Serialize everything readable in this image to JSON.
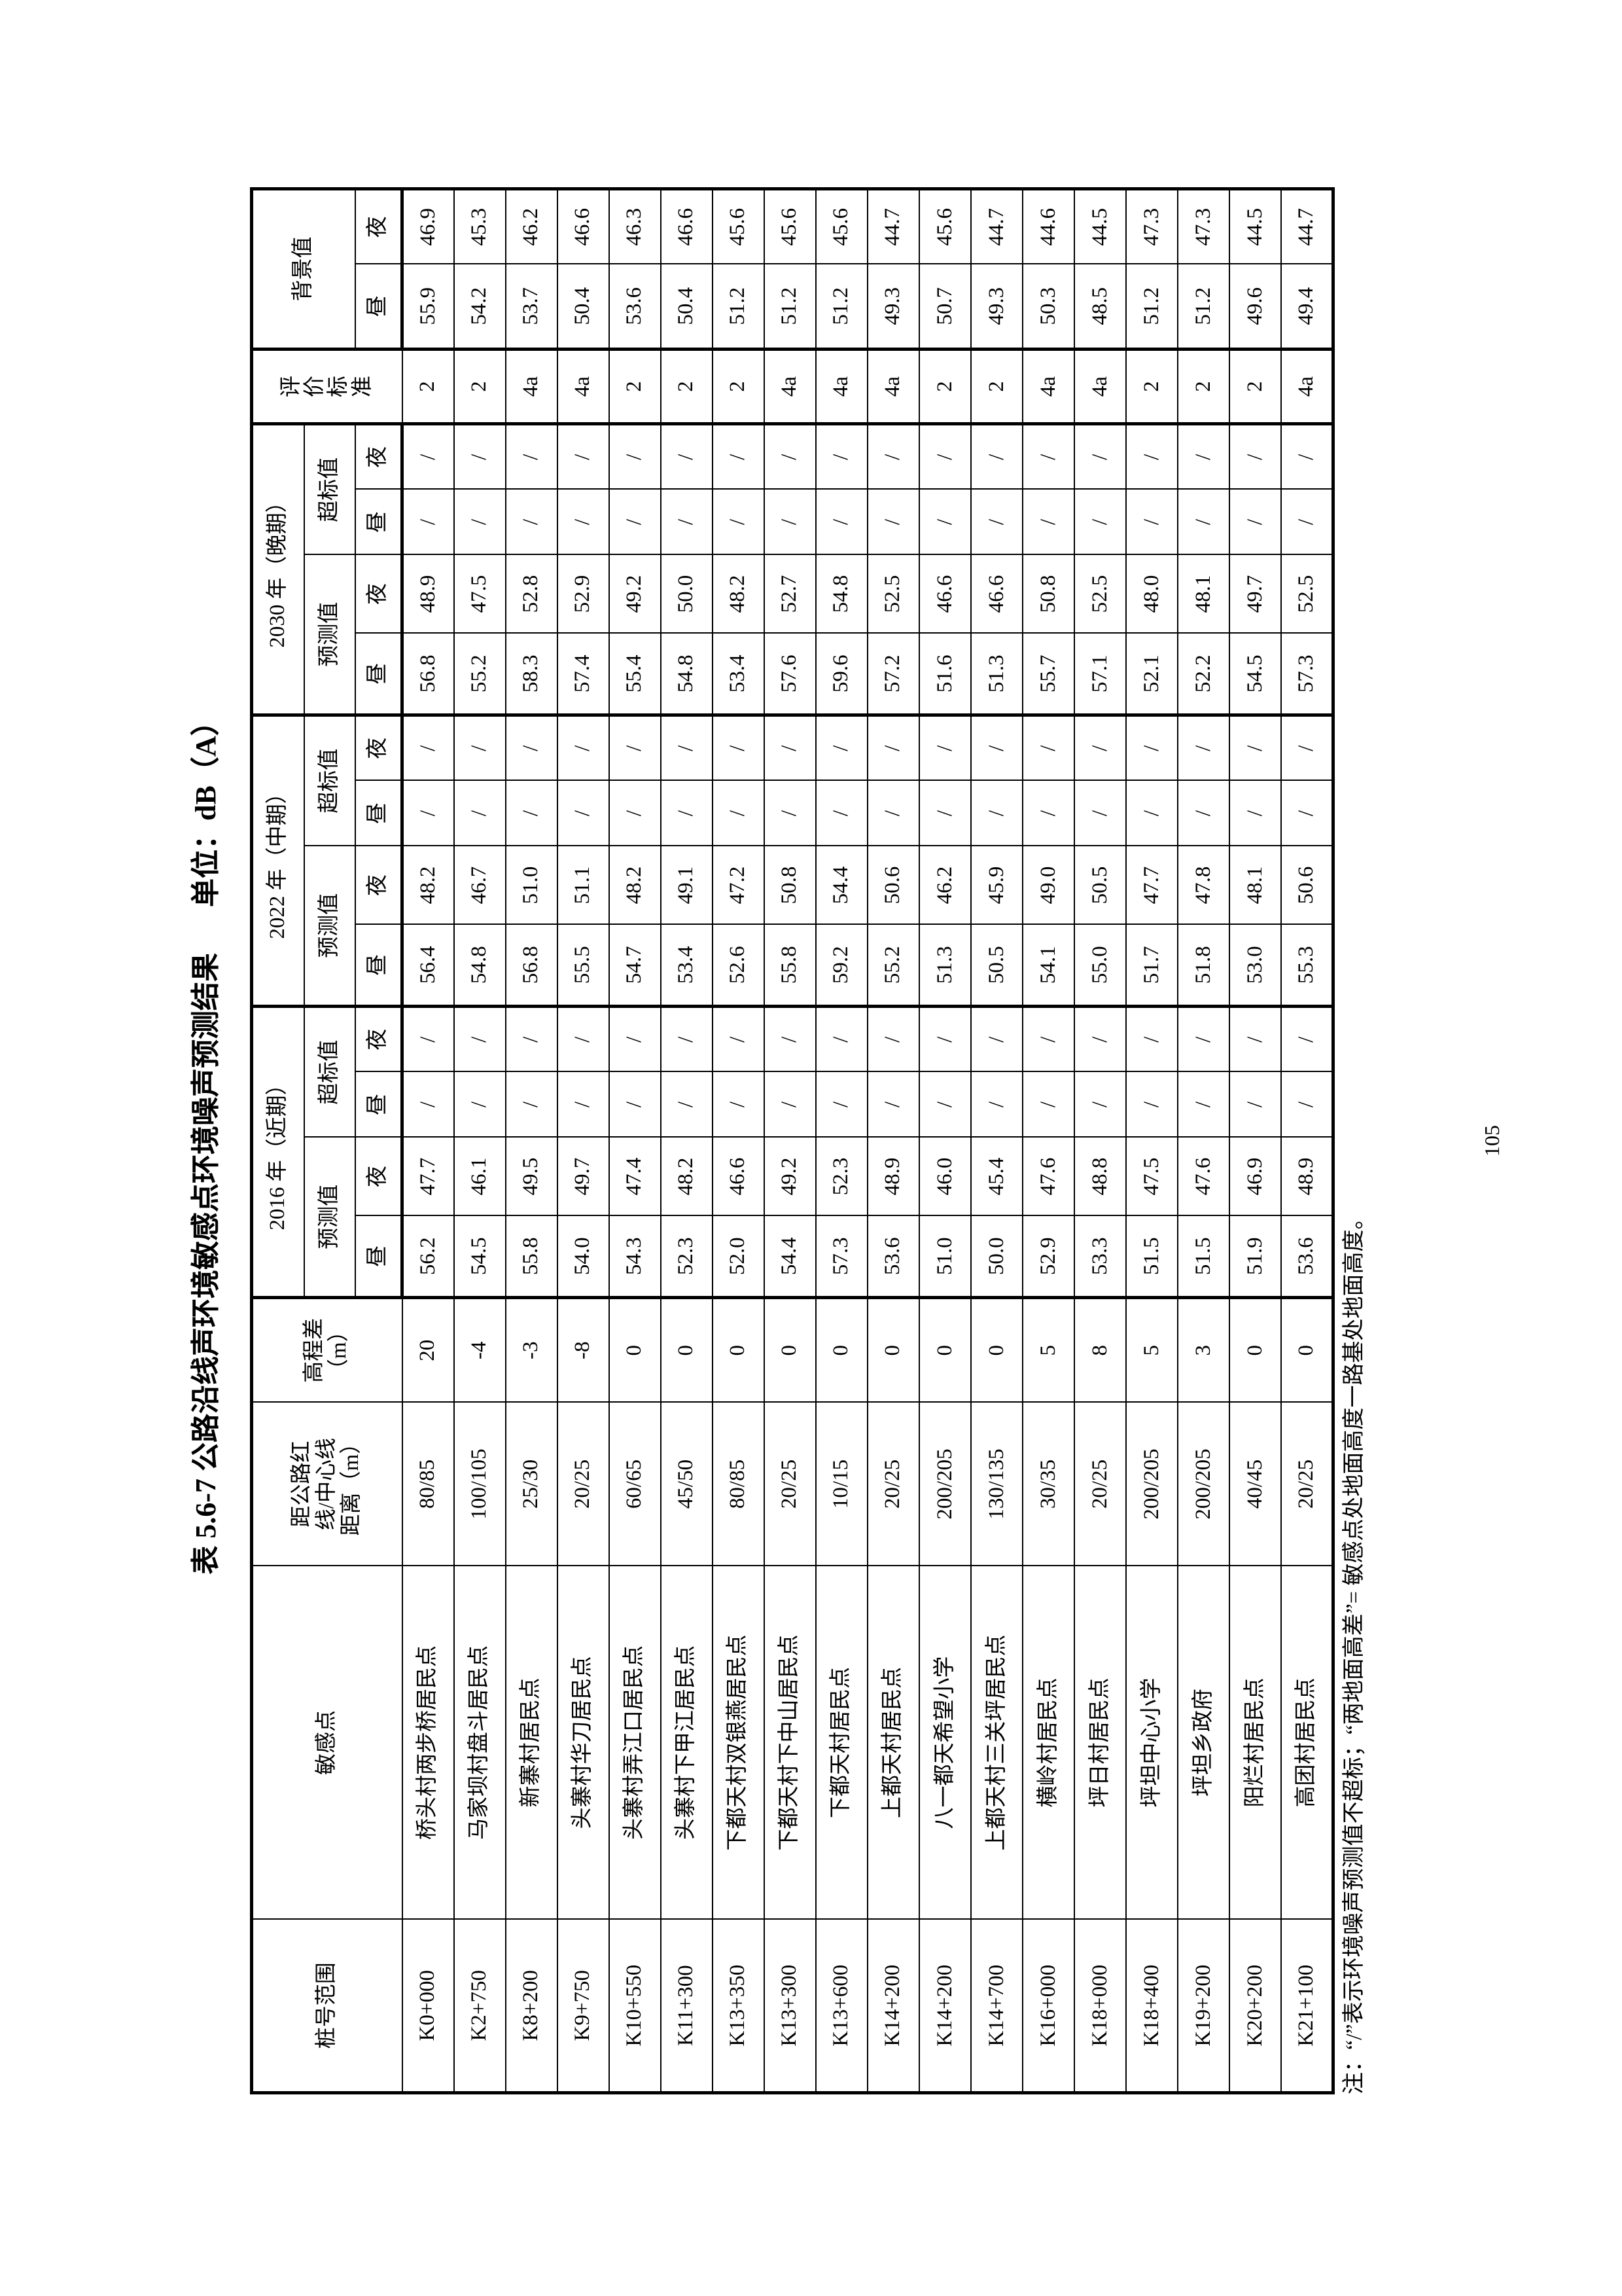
{
  "title": {
    "text": "表 5.6-7 公路沿线声环境敏感点环境噪声预测结果",
    "unit": "单位：dB（A）"
  },
  "header": {
    "station": "桩号范围",
    "point": "敏感点",
    "distance": "距公路红线/中心线距离（m）",
    "elevation": "高程差（m）",
    "periods": [
      "2016 年（近期）",
      "2022 年（中期）",
      "2030 年（晚期）"
    ],
    "predicted": "预测值",
    "exceed": "超标值",
    "standard": "评价标准",
    "background": "背景值",
    "day": "昼",
    "night": "夜"
  },
  "rows": [
    {
      "station": "K0+000",
      "point": "桥头村两步桥居民点",
      "distance": "80/85",
      "elev": "20",
      "p2016": [
        "56.2",
        "47.7",
        "/",
        "/"
      ],
      "p2022": [
        "56.4",
        "48.2",
        "/",
        "/"
      ],
      "p2030": [
        "56.8",
        "48.9",
        "/",
        "/"
      ],
      "std": "2",
      "bg": [
        "55.9",
        "46.9"
      ]
    },
    {
      "station": "K2+750",
      "point": "马家坝村盘斗居民点",
      "distance": "100/105",
      "elev": "-4",
      "p2016": [
        "54.5",
        "46.1",
        "/",
        "/"
      ],
      "p2022": [
        "54.8",
        "46.7",
        "/",
        "/"
      ],
      "p2030": [
        "55.2",
        "47.5",
        "/",
        "/"
      ],
      "std": "2",
      "bg": [
        "54.2",
        "45.3"
      ]
    },
    {
      "station": "K8+200",
      "point": "新寨村居民点",
      "distance": "25/30",
      "elev": "-3",
      "p2016": [
        "55.8",
        "49.5",
        "/",
        "/"
      ],
      "p2022": [
        "56.8",
        "51.0",
        "/",
        "/"
      ],
      "p2030": [
        "58.3",
        "52.8",
        "/",
        "/"
      ],
      "std": "4a",
      "bg": [
        "53.7",
        "46.2"
      ]
    },
    {
      "station": "K9+750",
      "point": "头寨村华刀居民点",
      "distance": "20/25",
      "elev": "-8",
      "p2016": [
        "54.0",
        "49.7",
        "/",
        "/"
      ],
      "p2022": [
        "55.5",
        "51.1",
        "/",
        "/"
      ],
      "p2030": [
        "57.4",
        "52.9",
        "/",
        "/"
      ],
      "std": "4a",
      "bg": [
        "50.4",
        "46.6"
      ]
    },
    {
      "station": "K10+550",
      "point": "头寨村弄江口居民点",
      "distance": "60/65",
      "elev": "0",
      "p2016": [
        "54.3",
        "47.4",
        "/",
        "/"
      ],
      "p2022": [
        "54.7",
        "48.2",
        "/",
        "/"
      ],
      "p2030": [
        "55.4",
        "49.2",
        "/",
        "/"
      ],
      "std": "2",
      "bg": [
        "53.6",
        "46.3"
      ]
    },
    {
      "station": "K11+300",
      "point": "头寨村下甲江居民点",
      "distance": "45/50",
      "elev": "0",
      "p2016": [
        "52.3",
        "48.2",
        "/",
        "/"
      ],
      "p2022": [
        "53.4",
        "49.1",
        "/",
        "/"
      ],
      "p2030": [
        "54.8",
        "50.0",
        "/",
        "/"
      ],
      "std": "2",
      "bg": [
        "50.4",
        "46.6"
      ]
    },
    {
      "station": "K13+350",
      "point": "下都天村双银燕居民点",
      "distance": "80/85",
      "elev": "0",
      "p2016": [
        "52.0",
        "46.6",
        "/",
        "/"
      ],
      "p2022": [
        "52.6",
        "47.2",
        "/",
        "/"
      ],
      "p2030": [
        "53.4",
        "48.2",
        "/",
        "/"
      ],
      "std": "2",
      "bg": [
        "51.2",
        "45.6"
      ]
    },
    {
      "station": "K13+300",
      "point": "下都天村下中山居民点",
      "distance": "20/25",
      "elev": "0",
      "p2016": [
        "54.4",
        "49.2",
        "/",
        "/"
      ],
      "p2022": [
        "55.8",
        "50.8",
        "/",
        "/"
      ],
      "p2030": [
        "57.6",
        "52.7",
        "/",
        "/"
      ],
      "std": "4a",
      "bg": [
        "51.2",
        "45.6"
      ]
    },
    {
      "station": "K13+600",
      "point": "下都天村居民点",
      "distance": "10/15",
      "elev": "0",
      "p2016": [
        "57.3",
        "52.3",
        "/",
        "/"
      ],
      "p2022": [
        "59.2",
        "54.4",
        "/",
        "/"
      ],
      "p2030": [
        "59.6",
        "54.8",
        "/",
        "/"
      ],
      "std": "4a",
      "bg": [
        "51.2",
        "45.6"
      ]
    },
    {
      "station": "K14+200",
      "point": "上都天村居民点",
      "distance": "20/25",
      "elev": "0",
      "p2016": [
        "53.6",
        "48.9",
        "/",
        "/"
      ],
      "p2022": [
        "55.2",
        "50.6",
        "/",
        "/"
      ],
      "p2030": [
        "57.2",
        "52.5",
        "/",
        "/"
      ],
      "std": "4a",
      "bg": [
        "49.3",
        "44.7"
      ]
    },
    {
      "station": "K14+200",
      "point": "八一都天希望小学",
      "distance": "200/205",
      "elev": "0",
      "p2016": [
        "51.0",
        "46.0",
        "/",
        "/"
      ],
      "p2022": [
        "51.3",
        "46.2",
        "/",
        "/"
      ],
      "p2030": [
        "51.6",
        "46.6",
        "/",
        "/"
      ],
      "std": "2",
      "bg": [
        "50.7",
        "45.6"
      ]
    },
    {
      "station": "K14+700",
      "point": "上都天村三关坪居民点",
      "distance": "130/135",
      "elev": "0",
      "p2016": [
        "50.0",
        "45.4",
        "/",
        "/"
      ],
      "p2022": [
        "50.5",
        "45.9",
        "/",
        "/"
      ],
      "p2030": [
        "51.3",
        "46.6",
        "/",
        "/"
      ],
      "std": "2",
      "bg": [
        "49.3",
        "44.7"
      ]
    },
    {
      "station": "K16+000",
      "point": "横岭村居民点",
      "distance": "30/35",
      "elev": "5",
      "p2016": [
        "52.9",
        "47.6",
        "/",
        "/"
      ],
      "p2022": [
        "54.1",
        "49.0",
        "/",
        "/"
      ],
      "p2030": [
        "55.7",
        "50.8",
        "/",
        "/"
      ],
      "std": "4a",
      "bg": [
        "50.3",
        "44.6"
      ]
    },
    {
      "station": "K18+000",
      "point": "坪日村居民点",
      "distance": "20/25",
      "elev": "8",
      "p2016": [
        "53.3",
        "48.8",
        "/",
        "/"
      ],
      "p2022": [
        "55.0",
        "50.5",
        "/",
        "/"
      ],
      "p2030": [
        "57.1",
        "52.5",
        "/",
        "/"
      ],
      "std": "4a",
      "bg": [
        "48.5",
        "44.5"
      ]
    },
    {
      "station": "K18+400",
      "point": "坪坦中心小学",
      "distance": "200/205",
      "elev": "5",
      "p2016": [
        "51.5",
        "47.5",
        "/",
        "/"
      ],
      "p2022": [
        "51.7",
        "47.7",
        "/",
        "/"
      ],
      "p2030": [
        "52.1",
        "48.0",
        "/",
        "/"
      ],
      "std": "2",
      "bg": [
        "51.2",
        "47.3"
      ]
    },
    {
      "station": "K19+200",
      "point": "坪坦乡政府",
      "distance": "200/205",
      "elev": "3",
      "p2016": [
        "51.5",
        "47.6",
        "/",
        "/"
      ],
      "p2022": [
        "51.8",
        "47.8",
        "/",
        "/"
      ],
      "p2030": [
        "52.2",
        "48.1",
        "/",
        "/"
      ],
      "std": "2",
      "bg": [
        "51.2",
        "47.3"
      ]
    },
    {
      "station": "K20+200",
      "point": "阳烂村居民点",
      "distance": "40/45",
      "elev": "0",
      "p2016": [
        "51.9",
        "46.9",
        "/",
        "/"
      ],
      "p2022": [
        "53.0",
        "48.1",
        "/",
        "/"
      ],
      "p2030": [
        "54.5",
        "49.7",
        "/",
        "/"
      ],
      "std": "2",
      "bg": [
        "49.6",
        "44.5"
      ]
    },
    {
      "station": "K21+100",
      "point": "高团村居民点",
      "distance": "20/25",
      "elev": "0",
      "p2016": [
        "53.6",
        "48.9",
        "/",
        "/"
      ],
      "p2022": [
        "55.3",
        "50.6",
        "/",
        "/"
      ],
      "p2030": [
        "57.3",
        "52.5",
        "/",
        "/"
      ],
      "std": "4a",
      "bg": [
        "49.4",
        "44.7"
      ]
    }
  ],
  "note": "注：“/”表示环境噪声预测值不超标；“两地面高差”= 敏感点处地面高度一路基处地面高度。",
  "page_number": "105"
}
